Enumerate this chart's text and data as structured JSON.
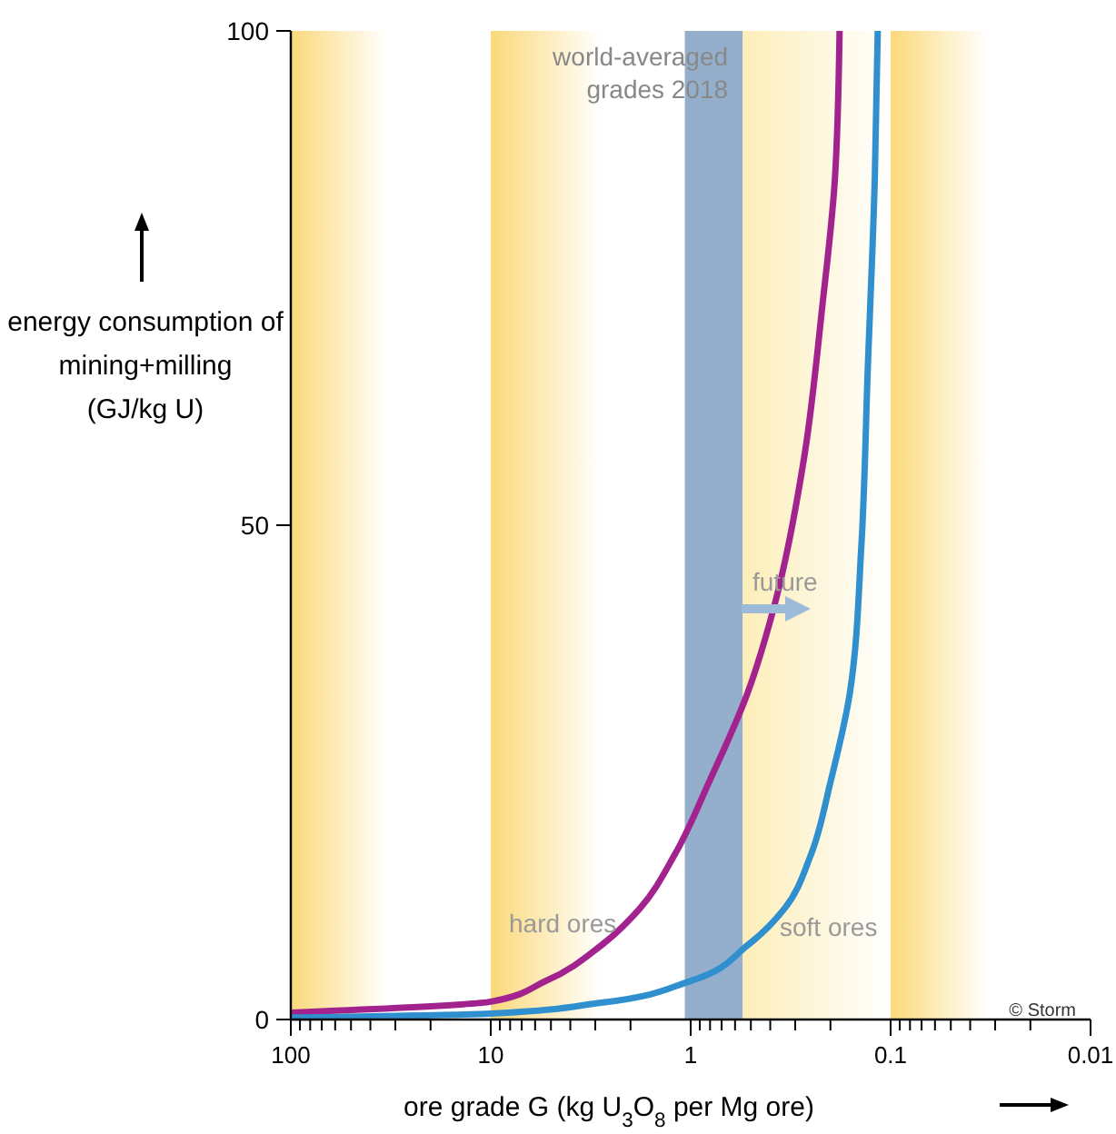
{
  "chart_data": {
    "type": "line",
    "xlabel": "ore grade G (kg U$_{3}$O$_{8}$ per Mg ore)",
    "ylabel": "energy consumption of\nmining+milling\n(GJ/kg U)",
    "log": "x",
    "xlim": [
      100,
      0.01
    ],
    "ylim": [
      0,
      100
    ],
    "xticks": [
      100,
      {
        "value": 90,
        "label": null
      },
      {
        "value": 80,
        "label": null
      },
      {
        "value": 70,
        "label": null
      },
      {
        "value": 60,
        "label": null
      },
      {
        "value": 50,
        "label": null
      },
      {
        "value": 40,
        "label": null
      },
      {
        "value": 30,
        "label": null
      },
      {
        "value": 20,
        "label": null
      },
      10,
      {
        "value": 9,
        "label": null
      },
      {
        "value": 8,
        "label": null
      },
      {
        "value": 7,
        "label": null
      },
      {
        "value": 6,
        "label": null
      },
      {
        "value": 5,
        "label": null
      },
      {
        "value": 4,
        "label": null
      },
      {
        "value": 3,
        "label": null
      },
      {
        "value": 2,
        "label": null
      },
      1,
      {
        "value": 0.9,
        "label": null
      },
      {
        "value": 0.8,
        "label": null
      },
      {
        "value": 0.7,
        "label": null
      },
      {
        "value": 0.6,
        "label": null
      },
      {
        "value": 0.5,
        "label": null
      },
      {
        "value": 0.4,
        "label": null
      },
      {
        "value": 0.3,
        "label": null
      },
      {
        "value": 0.2,
        "label": null
      },
      0.1,
      {
        "value": 0.09,
        "label": null
      },
      {
        "value": 0.08,
        "label": null
      },
      {
        "value": 0.07,
        "label": null
      },
      {
        "value": 0.06,
        "label": null
      },
      {
        "value": 0.05,
        "label": null
      },
      {
        "value": 0.04,
        "label": null
      },
      {
        "value": 0.03,
        "label": null
      },
      {
        "value": 0.02,
        "label": null
      },
      0.01
    ],
    "yticks": [
      0,
      50,
      100
    ],
    "grid": false,
    "marker": "none",
    "line_style": "solid",
    "series": [
      {
        "color": "#a3238e",
        "x": [
          100,
          10,
          5.3,
          2.8,
          1.8,
          1.2,
          0.81,
          0.52,
          0.38,
          0.27,
          0.22,
          0.19,
          0.18
        ],
        "values": [
          0.7,
          1.8,
          3.9,
          7.5,
          11.2,
          16.7,
          24,
          33,
          42,
          57,
          72,
          85,
          100
        ]
      },
      {
        "color": "#2f8fcf",
        "x": [
          100,
          10,
          2.8,
          1,
          0.52,
          0.34,
          0.25,
          0.2,
          0.16,
          0.14,
          0.13,
          0.12,
          0.116
        ],
        "values": [
          0.2,
          0.6,
          1.7,
          3.9,
          7.5,
          11.2,
          16.7,
          24,
          33,
          48,
          66,
          85,
          100
        ]
      }
    ],
    "bands": [
      {
        "axis": "x",
        "from": 100,
        "to": 33,
        "color": "#fbd97a"
      },
      {
        "axis": "x",
        "from": 10,
        "to": 2.8,
        "color": "#fbd97a"
      },
      {
        "axis": "x",
        "from": 0.55,
        "to": 0.1,
        "color": "#fdeeb8"
      },
      {
        "axis": "x",
        "from": 0.1,
        "to": 0.033,
        "color": "#fbd97a"
      },
      {
        "axis": "x",
        "from": 1.07,
        "to": 0.55,
        "color": "#94afcb",
        "label": "world-averaged\ngrades 2018"
      }
    ],
    "annotations": [
      "future",
      "hard ores",
      "soft ores",
      "© Storm"
    ]
  }
}
